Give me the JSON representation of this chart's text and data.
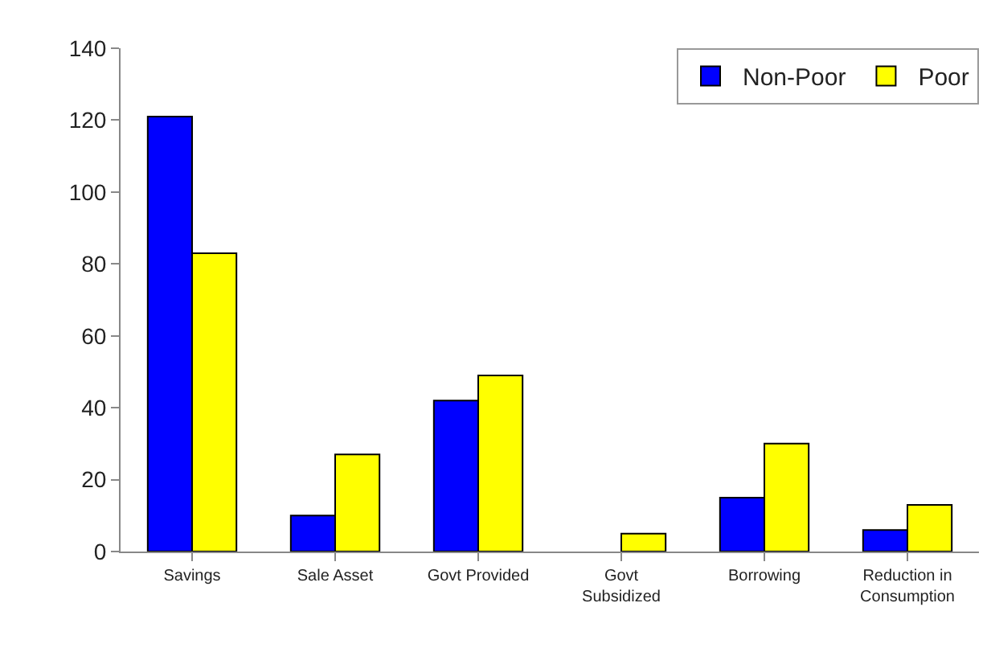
{
  "chart_data": {
    "type": "bar",
    "categories": [
      "Savings",
      "Sale Asset",
      "Govt Provided",
      "Govt Subsidized",
      "Borrowing",
      "Reduction in Consumption"
    ],
    "series": [
      {
        "name": "Non-Poor",
        "color": "#0000ff",
        "values": [
          121,
          10,
          42,
          null,
          15,
          6
        ]
      },
      {
        "name": "Poor",
        "color": "#ffff00",
        "values": [
          83,
          27,
          49,
          5,
          30,
          13
        ]
      }
    ],
    "ylim": [
      0,
      140
    ],
    "yticks": [
      0,
      20,
      40,
      60,
      80,
      100,
      120,
      140
    ],
    "grid": false,
    "legend": "top right"
  }
}
